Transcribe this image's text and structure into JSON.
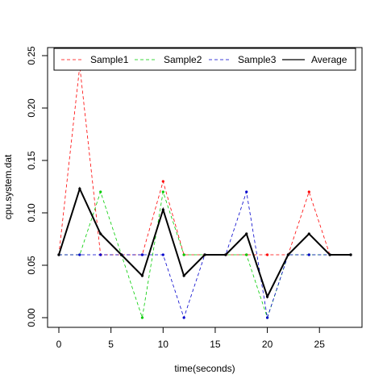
{
  "chart_data": {
    "type": "line",
    "xlabel": "time(seconds)",
    "ylabel": "cpu.system.dat",
    "xlim": [
      0,
      28
    ],
    "ylim": [
      0,
      0.25
    ],
    "x_ticks": [
      0,
      5,
      10,
      15,
      20,
      25
    ],
    "x_tick_labels": [
      "0",
      "5",
      "10",
      "15",
      "20",
      "25"
    ],
    "y_ticks": [
      0,
      0.05,
      0.1,
      0.15,
      0.2,
      0.25
    ],
    "y_tick_labels": [
      "0.00",
      "0.05",
      "0.10",
      "0.15",
      "0.20",
      "0.25"
    ],
    "grid": false,
    "legend_position": "top",
    "x": [
      0,
      2,
      4,
      6,
      8,
      10,
      12,
      14,
      16,
      18,
      20,
      22,
      24,
      26,
      28
    ],
    "series": [
      {
        "name": "Sample1",
        "color": "#ff0000",
        "style": "dashed",
        "values": [
          0.06,
          0.24,
          0.06,
          0.06,
          0.06,
          0.13,
          0.06,
          0.06,
          0.06,
          0.06,
          0.06,
          0.06,
          0.12,
          0.06,
          0.06
        ]
      },
      {
        "name": "Sample2",
        "color": "#00cc00",
        "style": "dashed",
        "values": [
          0.06,
          0.06,
          0.12,
          0.06,
          0.0,
          0.12,
          0.06,
          0.06,
          0.06,
          0.06,
          0.0,
          0.06,
          0.06,
          0.06,
          0.06
        ]
      },
      {
        "name": "Sample3",
        "color": "#0000cc",
        "style": "dashed",
        "values": [
          0.06,
          0.06,
          0.06,
          0.06,
          0.06,
          0.06,
          0.0,
          0.06,
          0.06,
          0.12,
          0.0,
          0.06,
          0.06,
          0.06,
          0.06
        ]
      },
      {
        "name": "Average",
        "color": "#000000",
        "style": "solid",
        "values": [
          0.06,
          0.123,
          0.08,
          0.06,
          0.04,
          0.103,
          0.04,
          0.06,
          0.06,
          0.08,
          0.02,
          0.06,
          0.08,
          0.06,
          0.06
        ]
      }
    ]
  }
}
